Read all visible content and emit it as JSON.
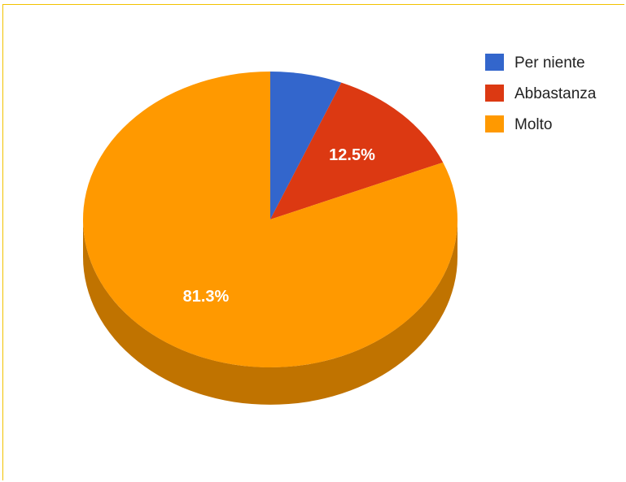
{
  "chart_data": {
    "type": "pie",
    "style": "3d",
    "categories": [
      "Per niente",
      "Abbastanza",
      "Molto"
    ],
    "values": [
      6.2,
      12.5,
      81.3
    ],
    "data_labels": [
      "",
      "12.5%",
      "81.3%"
    ],
    "colors": [
      "#3366cc",
      "#dc3912",
      "#ff9900"
    ],
    "side_colors": [
      "#244a99",
      "#a52a0d",
      "#c07300"
    ],
    "legend_position": "right"
  }
}
